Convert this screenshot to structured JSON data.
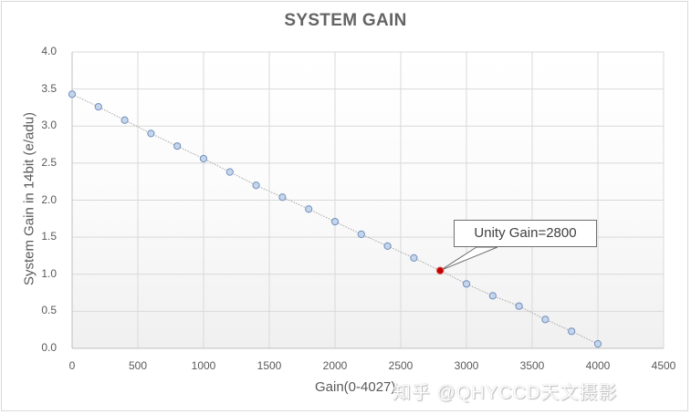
{
  "chart_data": {
    "type": "scatter",
    "title": "SYSTEM GAIN",
    "xlabel": "Gain(0-4027)",
    "ylabel": "System Gain in 14bit (e/adu)",
    "xlim": [
      0,
      4500
    ],
    "ylim": [
      0.0,
      4.0
    ],
    "x_ticks": [
      "0",
      "500",
      "1000",
      "1500",
      "2000",
      "2500",
      "3000",
      "3500",
      "4000",
      "4500"
    ],
    "y_ticks": [
      "0.0",
      "0.5",
      "1.0",
      "1.5",
      "2.0",
      "2.5",
      "3.0",
      "3.5",
      "4.0"
    ],
    "grid": true,
    "legend": "none",
    "series": [
      {
        "name": "System Gain",
        "marker": "circle",
        "line": "dotted",
        "color": "#8eaadb",
        "x": [
          0,
          200,
          400,
          600,
          800,
          1000,
          1200,
          1400,
          1600,
          1800,
          2000,
          2200,
          2400,
          2600,
          2800,
          3000,
          3200,
          3400,
          3600,
          3800,
          4000
        ],
        "y": [
          3.43,
          3.26,
          3.08,
          2.9,
          2.73,
          2.56,
          2.38,
          2.2,
          2.04,
          1.88,
          1.71,
          1.54,
          1.38,
          1.22,
          1.05,
          0.87,
          0.71,
          0.57,
          0.39,
          0.23,
          0.06
        ]
      }
    ],
    "highlight": {
      "x": 2800,
      "y": 1.05,
      "color": "#c00000"
    },
    "annotations": [
      {
        "text": "Unity Gain=2800",
        "x": 2800,
        "y": 1.05
      }
    ]
  },
  "watermark": "知乎 @QHYCCD天文摄影",
  "colors": {
    "marker_fill": "#c5d5ea",
    "marker_stroke": "#6f8fbf",
    "highlight": "#c00000",
    "grid": "#d9d9d9",
    "text": "#595959",
    "title": "#646464"
  }
}
